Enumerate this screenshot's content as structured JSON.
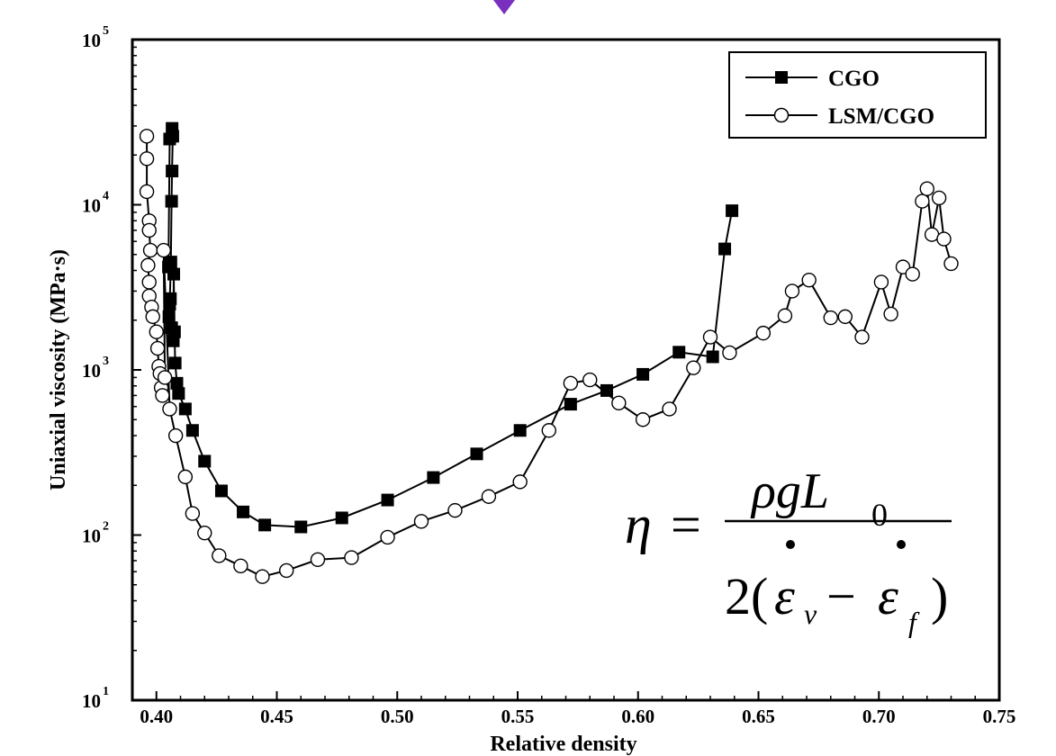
{
  "colors": {
    "marker_arrow": "#7b2fbf",
    "axis": "#000000",
    "background": "#ffffff"
  },
  "equation": {
    "lhs": "η",
    "equals": "=",
    "numerator": "ρgL",
    "numerator_sub": "0",
    "den_coef": "2(",
    "den_eps1": "ε",
    "den_sub1": "v",
    "den_minus": "−",
    "den_eps2": "ε",
    "den_sub2": "f",
    "den_close": ")"
  },
  "chart_data": {
    "type": "scatter",
    "title": "",
    "xlabel": "Relative density",
    "ylabel": "Uniaxial viscosity (MPa·s)",
    "xlim": [
      0.39,
      0.75
    ],
    "ylim": [
      10,
      100000
    ],
    "yscale": "log",
    "xticks": [
      "0.40",
      "0.45",
      "0.50",
      "0.55",
      "0.60",
      "0.65",
      "0.70",
      "0.75"
    ],
    "yticks": [
      {
        "base": "10",
        "exp": "1",
        "value": 10
      },
      {
        "base": "10",
        "exp": "2",
        "value": 100
      },
      {
        "base": "10",
        "exp": "3",
        "value": 1000
      },
      {
        "base": "10",
        "exp": "4",
        "value": 10000
      },
      {
        "base": "10",
        "exp": "5",
        "value": 100000
      }
    ],
    "grid": false,
    "legend_position": "top-right",
    "series": [
      {
        "name": "CGO",
        "marker": "filled-square",
        "points": [
          [
            0.405,
            4200
          ],
          [
            0.4055,
            25000
          ],
          [
            0.4065,
            29000
          ],
          [
            0.4068,
            26000
          ],
          [
            0.4065,
            16000
          ],
          [
            0.4063,
            10500
          ],
          [
            0.406,
            4500
          ],
          [
            0.4055,
            2500
          ],
          [
            0.4052,
            2100
          ],
          [
            0.4058,
            2700
          ],
          [
            0.4063,
            1800
          ],
          [
            0.407,
            1500
          ],
          [
            0.4072,
            3800
          ],
          [
            0.4075,
            1700
          ],
          [
            0.4078,
            1100
          ],
          [
            0.4085,
            830
          ],
          [
            0.4092,
            720
          ],
          [
            0.412,
            580
          ],
          [
            0.415,
            430
          ],
          [
            0.42,
            280
          ],
          [
            0.427,
            185
          ],
          [
            0.436,
            138
          ],
          [
            0.445,
            115
          ],
          [
            0.46,
            112
          ],
          [
            0.477,
            127
          ],
          [
            0.496,
            163
          ],
          [
            0.515,
            223
          ],
          [
            0.533,
            310
          ],
          [
            0.551,
            430
          ],
          [
            0.572,
            620
          ],
          [
            0.587,
            750
          ],
          [
            0.602,
            940
          ],
          [
            0.617,
            1280
          ],
          [
            0.631,
            1200
          ],
          [
            0.636,
            5400
          ],
          [
            0.639,
            9200
          ]
        ]
      },
      {
        "name": "LSM/CGO",
        "marker": "open-circle",
        "points": [
          [
            0.396,
            26000
          ],
          [
            0.396,
            19000
          ],
          [
            0.396,
            12000
          ],
          [
            0.397,
            8000
          ],
          [
            0.397,
            7000
          ],
          [
            0.3975,
            5300
          ],
          [
            0.3965,
            4300
          ],
          [
            0.397,
            3400
          ],
          [
            0.397,
            2800
          ],
          [
            0.398,
            2400
          ],
          [
            0.3985,
            2100
          ],
          [
            0.4,
            1700
          ],
          [
            0.4005,
            1350
          ],
          [
            0.401,
            1050
          ],
          [
            0.4015,
            950
          ],
          [
            0.402,
            780
          ],
          [
            0.4025,
            700
          ],
          [
            0.4035,
            900
          ],
          [
            0.403,
            5300
          ],
          [
            0.4055,
            580
          ],
          [
            0.408,
            400
          ],
          [
            0.412,
            225
          ],
          [
            0.415,
            135
          ],
          [
            0.42,
            103
          ],
          [
            0.426,
            75
          ],
          [
            0.435,
            65
          ],
          [
            0.444,
            56
          ],
          [
            0.454,
            61
          ],
          [
            0.467,
            71
          ],
          [
            0.481,
            73
          ],
          [
            0.496,
            97
          ],
          [
            0.51,
            121
          ],
          [
            0.524,
            141
          ],
          [
            0.538,
            171
          ],
          [
            0.551,
            210
          ],
          [
            0.563,
            430
          ],
          [
            0.572,
            830
          ],
          [
            0.58,
            870
          ],
          [
            0.592,
            630
          ],
          [
            0.602,
            500
          ],
          [
            0.613,
            580
          ],
          [
            0.623,
            1030
          ],
          [
            0.63,
            1580
          ],
          [
            0.638,
            1270
          ],
          [
            0.652,
            1670
          ],
          [
            0.661,
            2130
          ],
          [
            0.664,
            3000
          ],
          [
            0.671,
            3500
          ],
          [
            0.68,
            2070
          ],
          [
            0.686,
            2100
          ],
          [
            0.693,
            1580
          ],
          [
            0.701,
            3400
          ],
          [
            0.705,
            2180
          ],
          [
            0.71,
            4200
          ],
          [
            0.714,
            3800
          ],
          [
            0.718,
            10500
          ],
          [
            0.72,
            12500
          ],
          [
            0.722,
            6600
          ],
          [
            0.725,
            11000
          ],
          [
            0.727,
            6200
          ],
          [
            0.73,
            4400
          ]
        ]
      }
    ]
  }
}
